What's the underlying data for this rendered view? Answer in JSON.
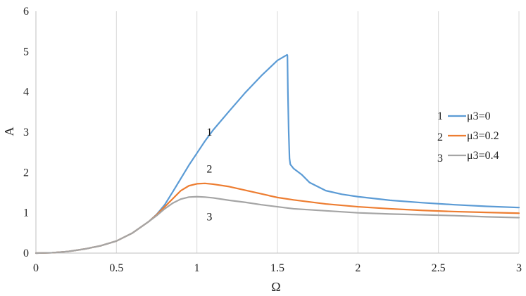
{
  "chart_data": {
    "type": "line",
    "title": "",
    "xlabel": "Ω",
    "ylabel": "A",
    "xlim": [
      0,
      3
    ],
    "ylim": [
      0,
      6
    ],
    "xticks": [
      0,
      0.5,
      1,
      1.5,
      2,
      2.5,
      3
    ],
    "xtick_labels": [
      "0",
      "0.5",
      "1",
      "1.5",
      "2",
      "2.5",
      "3"
    ],
    "yticks": [
      0,
      1,
      2,
      3,
      4,
      5,
      6
    ],
    "ytick_labels": [
      "0",
      "1",
      "2",
      "3",
      "4",
      "5",
      "6"
    ],
    "grid": "vertical",
    "legend_position": "right",
    "series": [
      {
        "name": "μ3=0",
        "legend_number": "1",
        "color": "#5b9bd5",
        "x": [
          0,
          0.1,
          0.2,
          0.3,
          0.4,
          0.5,
          0.6,
          0.7,
          0.75,
          0.8,
          0.85,
          0.9,
          0.95,
          1.0,
          1.05,
          1.1,
          1.2,
          1.3,
          1.4,
          1.5,
          1.56,
          1.562,
          1.565,
          1.57,
          1.575,
          1.58,
          1.6,
          1.65,
          1.7,
          1.8,
          1.9,
          2.0,
          2.2,
          2.4,
          2.6,
          2.8,
          3.0
        ],
        "y": [
          0,
          0.01,
          0.04,
          0.1,
          0.18,
          0.3,
          0.5,
          0.78,
          0.96,
          1.2,
          1.52,
          1.85,
          2.18,
          2.48,
          2.78,
          3.05,
          3.52,
          3.98,
          4.4,
          4.78,
          4.92,
          4.9,
          4.0,
          3.0,
          2.35,
          2.2,
          2.1,
          1.95,
          1.75,
          1.55,
          1.46,
          1.4,
          1.31,
          1.25,
          1.2,
          1.16,
          1.13
        ],
        "curve_label": "1",
        "curve_label_pos": [
          1.06,
          3.0
        ]
      },
      {
        "name": "μ3=0.2",
        "legend_number": "2",
        "color": "#ed7d31",
        "x": [
          0,
          0.1,
          0.2,
          0.3,
          0.4,
          0.5,
          0.6,
          0.7,
          0.75,
          0.8,
          0.85,
          0.9,
          0.95,
          1.0,
          1.05,
          1.1,
          1.2,
          1.3,
          1.4,
          1.5,
          1.6,
          1.8,
          2.0,
          2.2,
          2.4,
          2.6,
          2.8,
          3.0
        ],
        "y": [
          0,
          0.01,
          0.04,
          0.1,
          0.18,
          0.3,
          0.5,
          0.78,
          0.95,
          1.15,
          1.35,
          1.55,
          1.67,
          1.72,
          1.73,
          1.71,
          1.65,
          1.56,
          1.47,
          1.38,
          1.32,
          1.22,
          1.15,
          1.1,
          1.06,
          1.03,
          1.01,
          0.99
        ],
        "curve_label": "2",
        "curve_label_pos": [
          1.06,
          2.08
        ]
      },
      {
        "name": "μ3=0.4",
        "legend_number": "3",
        "color": "#a5a5a5",
        "x": [
          0,
          0.1,
          0.2,
          0.3,
          0.4,
          0.5,
          0.6,
          0.7,
          0.75,
          0.8,
          0.85,
          0.9,
          0.95,
          1.0,
          1.05,
          1.1,
          1.2,
          1.3,
          1.4,
          1.5,
          1.6,
          1.8,
          2.0,
          2.2,
          2.4,
          2.6,
          2.8,
          3.0
        ],
        "y": [
          0,
          0.01,
          0.04,
          0.1,
          0.18,
          0.3,
          0.5,
          0.78,
          0.93,
          1.1,
          1.24,
          1.34,
          1.39,
          1.4,
          1.39,
          1.37,
          1.31,
          1.26,
          1.2,
          1.15,
          1.1,
          1.05,
          1.0,
          0.97,
          0.95,
          0.93,
          0.9,
          0.88
        ],
        "curve_label": "3",
        "curve_label_pos": [
          1.06,
          0.9
        ]
      }
    ]
  }
}
